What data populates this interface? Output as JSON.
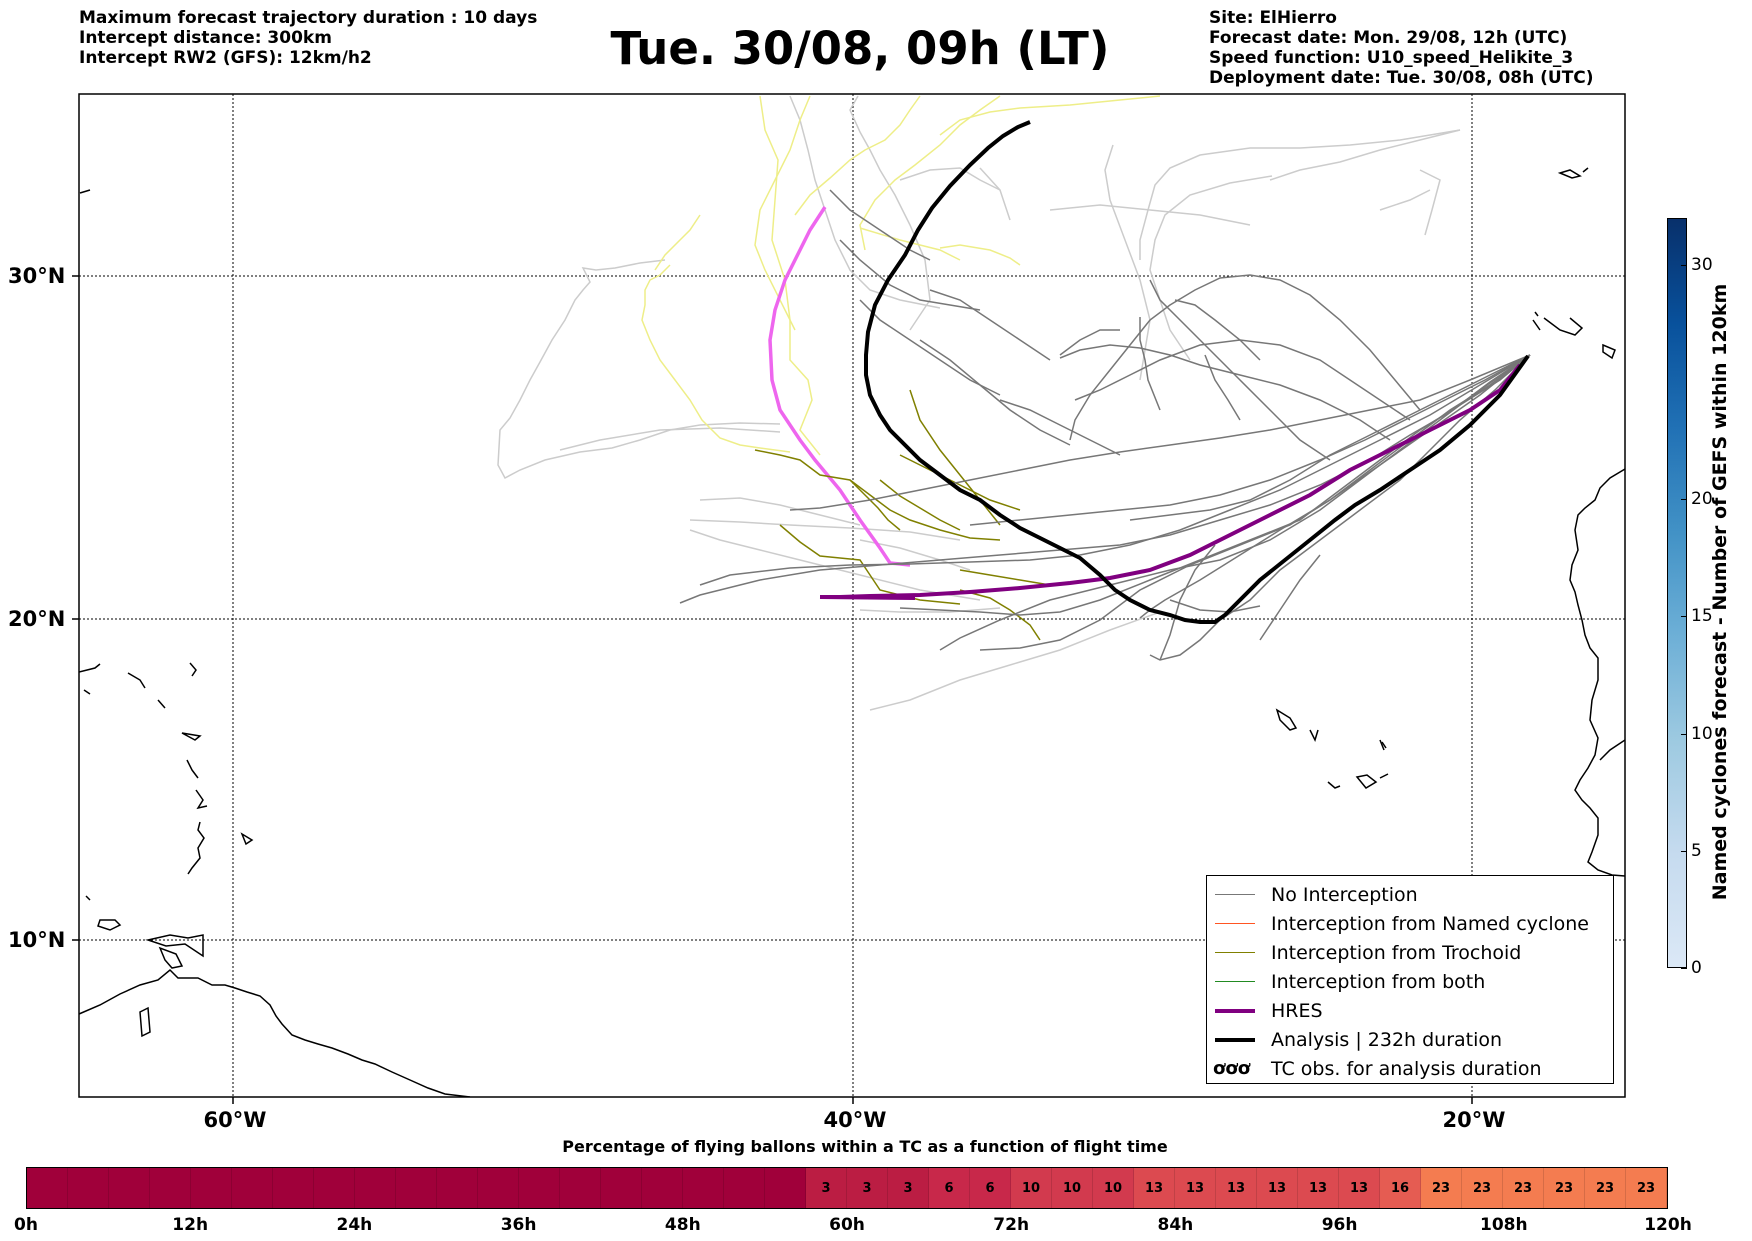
{
  "header": {
    "left": [
      "Maximum forecast trajectory duration : 10 days",
      "Intercept distance: 300km",
      "Intercept RW2 (GFS):  12km/h2"
    ],
    "right": [
      "Site: ElHierro",
      "Forecast date: Mon. 29/08, 12h (UTC)",
      "Speed function: U10_speed_Helikite_3",
      "Deployment date: Tue. 30/08, 08h (UTC)"
    ],
    "title": "Tue. 30/08, 09h (LT)"
  },
  "map": {
    "lat_labels": [
      "30°N",
      "20°N",
      "10°N"
    ],
    "lon_labels": [
      "60°W",
      "40°W",
      "20°W"
    ],
    "colors": {
      "no_interception": "#777777",
      "named_cyclone": "#ff5522",
      "trochoid": "#808000",
      "both": "#228b22",
      "hres": "#800080",
      "analysis": "#000000",
      "early_light": "#cccccc",
      "early_yellow": "#eeee88",
      "early_pink": "#ee66ee"
    }
  },
  "legend": {
    "items": [
      {
        "label": "No Interception",
        "color": "#777777",
        "width": 1.5
      },
      {
        "label": "Interception from Named cyclone",
        "color": "#ff5522",
        "width": 1.5
      },
      {
        "label": "Interception from Trochoid",
        "color": "#808000",
        "width": 1.5
      },
      {
        "label": "Interception from both",
        "color": "#228b22",
        "width": 1.5
      },
      {
        "label": "HRES",
        "color": "#800080",
        "width": 4
      },
      {
        "label": "Analysis | 232h duration",
        "color": "#000000",
        "width": 4
      },
      {
        "label": "TC obs. for analysis duration",
        "symbol": "ơơơ"
      }
    ]
  },
  "colorbar": {
    "label": "Named cyclones forecast - Number of GEFS within 120km",
    "ticks": [
      "0",
      "5",
      "10",
      "15",
      "20",
      "30"
    ],
    "min": 0,
    "max": 32
  },
  "time_bar": {
    "title": "Percentage of flying ballons within a TC as a function of flight time",
    "tick_labels": [
      "0h",
      "12h",
      "24h",
      "36h",
      "48h",
      "60h",
      "72h",
      "84h",
      "96h",
      "108h",
      "120h"
    ],
    "values": [
      0,
      0,
      0,
      0,
      0,
      0,
      0,
      0,
      0,
      0,
      0,
      0,
      0,
      0,
      0,
      0,
      0,
      0,
      0,
      3,
      3,
      3,
      6,
      6,
      10,
      10,
      10,
      13,
      13,
      13,
      13,
      13,
      13,
      16,
      23,
      23,
      23,
      23,
      23,
      23
    ]
  }
}
